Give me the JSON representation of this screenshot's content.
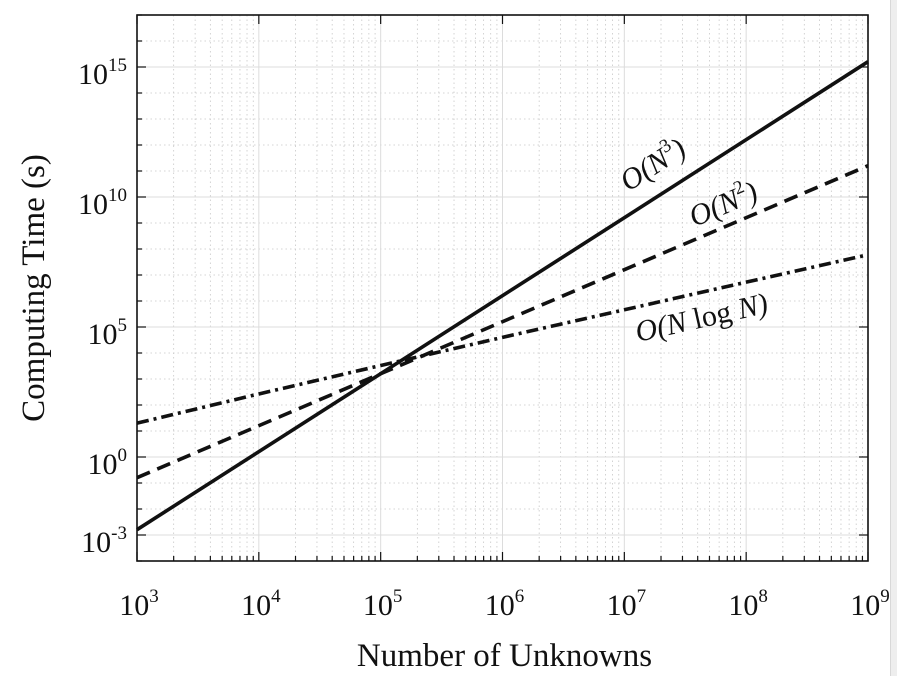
{
  "chart_data": {
    "type": "line",
    "title": "",
    "xlabel": "Number of Unknowns",
    "ylabel": "Computing Time (s)",
    "xscale": "log",
    "yscale": "log",
    "xlim": [
      1000,
      1000000000
    ],
    "ylim": [
      0.0001,
      100000000000000000
    ],
    "grid": true,
    "legend": "none",
    "x_ticks": [
      {
        "value": 1000,
        "base": "10",
        "exp": "3"
      },
      {
        "value": 10000,
        "base": "10",
        "exp": "4"
      },
      {
        "value": 100000,
        "base": "10",
        "exp": "5"
      },
      {
        "value": 1000000,
        "base": "10",
        "exp": "6"
      },
      {
        "value": 10000000,
        "base": "10",
        "exp": "7"
      },
      {
        "value": 100000000,
        "base": "10",
        "exp": "8"
      },
      {
        "value": 1000000000,
        "base": "10",
        "exp": "9"
      }
    ],
    "y_ticks": [
      {
        "value": 0.001,
        "base": "10",
        "exp": "-3"
      },
      {
        "value": 1,
        "base": "10",
        "exp": "0"
      },
      {
        "value": 100000,
        "base": "10",
        "exp": "5"
      },
      {
        "value": 10000000000,
        "base": "10",
        "exp": "10"
      },
      {
        "value": 1000000000000000,
        "base": "10",
        "exp": "15"
      }
    ],
    "series": [
      {
        "label_parts": [
          "O(N",
          "3",
          ")"
        ],
        "line_style": "solid",
        "color": "#111111",
        "x": [
          1000,
          1000000000
        ],
        "y": [
          0.0016,
          1600000000000000
        ]
      },
      {
        "label_parts": [
          "O(N",
          "2",
          ")"
        ],
        "line_style": "dashed",
        "color": "#111111",
        "x": [
          1000,
          1000000000
        ],
        "y": [
          0.16,
          160000000000
        ]
      },
      {
        "label_parts": [
          "O(N ",
          "log",
          " N)"
        ],
        "line_style": "dashdot",
        "color": "#111111",
        "x": [
          1000,
          10000,
          100000,
          1000000,
          10000000,
          100000000,
          1000000000
        ],
        "y": [
          20,
          266,
          3300,
          40000,
          460000,
          5300000,
          60000000
        ]
      }
    ]
  }
}
